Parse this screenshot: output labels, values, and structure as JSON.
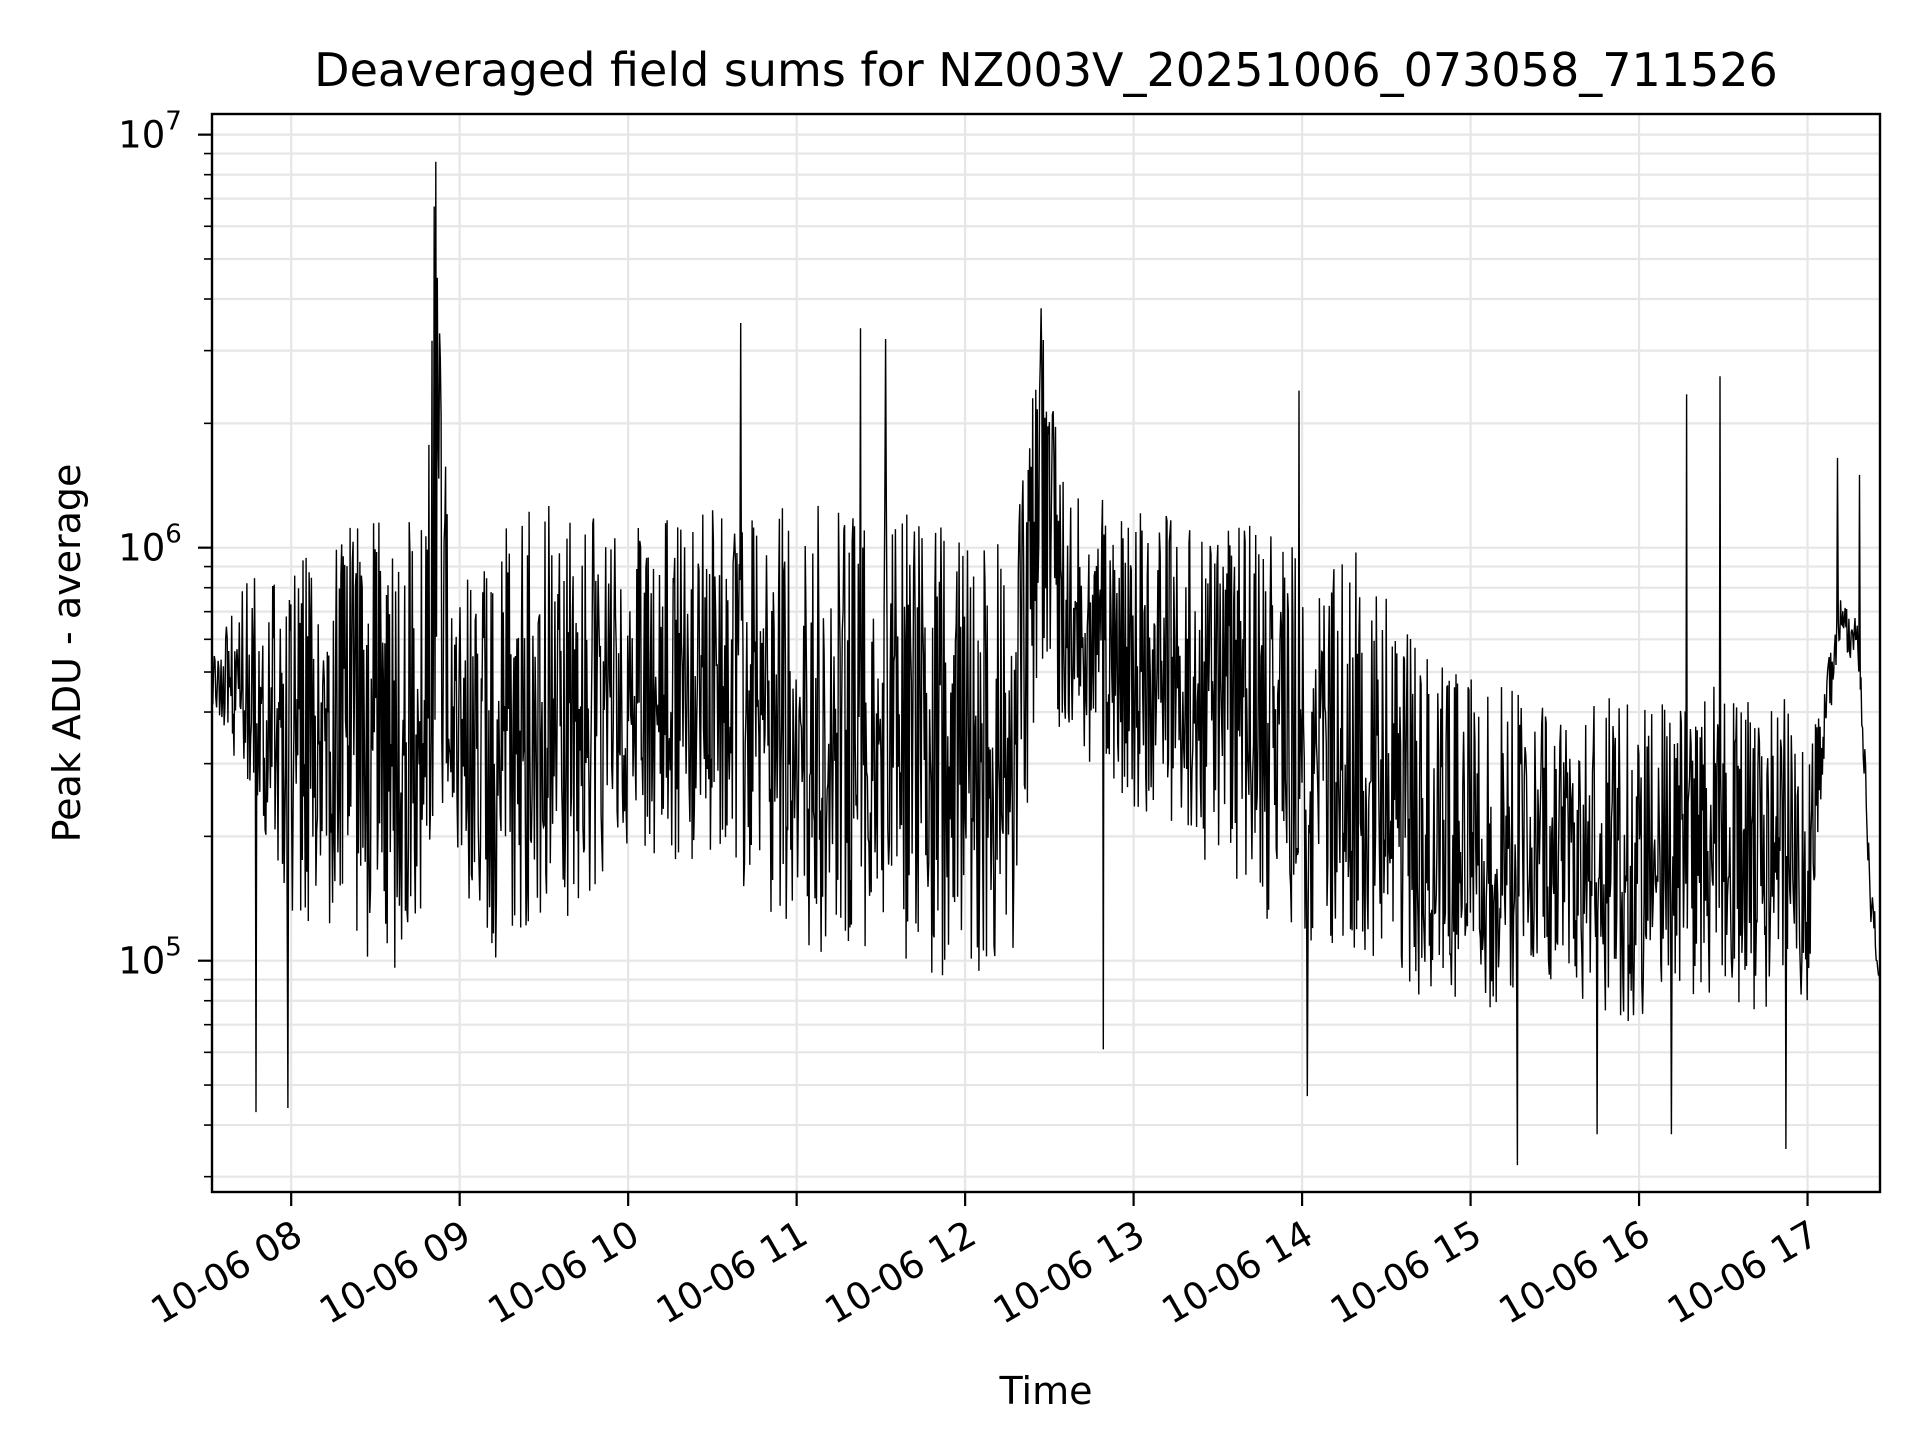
{
  "chart_data": {
    "type": "line",
    "title": "Deaveraged field sums for NZ003V_20251006_073058_711526",
    "xlabel": "Time",
    "ylabel": "Peak ADU - average",
    "yscale": "log",
    "ylim_log10": [
      4.44,
      7.05
    ],
    "y_ticks": [
      {
        "exponent": 5,
        "base": "10",
        "sup": "5"
      },
      {
        "exponent": 6,
        "base": "10",
        "sup": "6"
      },
      {
        "exponent": 7,
        "base": "10",
        "sup": "7"
      }
    ],
    "xlim_hours": [
      7.53,
      17.43
    ],
    "x_ticks": [
      {
        "hour": 8,
        "label": "10-06 08"
      },
      {
        "hour": 9,
        "label": "10-06 09"
      },
      {
        "hour": 10,
        "label": "10-06 10"
      },
      {
        "hour": 11,
        "label": "10-06 11"
      },
      {
        "hour": 12,
        "label": "10-06 12"
      },
      {
        "hour": 13,
        "label": "10-06 13"
      },
      {
        "hour": 14,
        "label": "10-06 14"
      },
      {
        "hour": 15,
        "label": "10-06 15"
      },
      {
        "hour": 16,
        "label": "10-06 16"
      },
      {
        "hour": 17,
        "label": "10-06 17"
      }
    ],
    "grid": true,
    "line_color": "#000000",
    "series": [
      {
        "name": "deaveraged field sums",
        "envelope_hours": [
          7.53,
          7.75,
          8.0,
          8.3,
          8.6,
          8.8,
          8.86,
          8.95,
          9.2,
          9.5,
          9.8,
          10.0,
          10.3,
          10.6,
          10.9,
          11.2,
          11.5,
          11.7,
          11.9,
          12.1,
          12.3,
          12.45,
          12.6,
          12.9,
          13.2,
          13.5,
          13.8,
          14.0,
          14.3,
          14.5,
          14.7,
          14.9,
          15.1,
          15.3,
          15.5,
          15.7,
          15.9,
          16.1,
          16.3,
          16.5,
          16.7,
          16.9,
          17.0,
          17.1,
          17.2,
          17.3,
          17.38,
          17.43
        ],
        "envelope_high_adu": [
          550000,
          850000,
          950000,
          1100000,
          1250000,
          1200000,
          8600000,
          800000,
          1100000,
          1300000,
          1250000,
          1150000,
          1200000,
          1300000,
          1350000,
          1300000,
          1400000,
          1200000,
          1100000,
          1050000,
          1300000,
          3800000,
          1350000,
          1300000,
          1250000,
          1200000,
          1100000,
          1000000,
          1000000,
          850000,
          550000,
          500000,
          480000,
          450000,
          420000,
          430000,
          440000,
          450000,
          460000,
          470000,
          450000,
          430000,
          300000,
          480000,
          780000,
          680000,
          160000,
          95000
        ],
        "envelope_low_adu": [
          400000,
          250000,
          130000,
          110000,
          90000,
          120000,
          300000,
          150000,
          90000,
          110000,
          150000,
          180000,
          150000,
          160000,
          120000,
          100000,
          110000,
          90000,
          85000,
          95000,
          100000,
          500000,
          300000,
          250000,
          200000,
          160000,
          120000,
          110000,
          100000,
          90000,
          80000,
          75000,
          70000,
          80000,
          85000,
          80000,
          70000,
          75000,
          80000,
          85000,
          70000,
          75000,
          80000,
          300000,
          560000,
          520000,
          110000,
          85000
        ],
        "spikes": [
          {
            "hour": 8.86,
            "adu": 8600000
          },
          {
            "hour": 8.85,
            "adu": 6700000
          },
          {
            "hour": 10.67,
            "adu": 3500000
          },
          {
            "hour": 11.38,
            "adu": 3400000
          },
          {
            "hour": 11.53,
            "adu": 3200000
          },
          {
            "hour": 12.45,
            "adu": 3800000
          },
          {
            "hour": 12.4,
            "adu": 2300000
          },
          {
            "hour": 16.28,
            "adu": 2350000
          },
          {
            "hour": 16.48,
            "adu": 2600000
          },
          {
            "hour": 13.98,
            "adu": 2400000
          },
          {
            "hour": 17.18,
            "adu": 1650000
          },
          {
            "hour": 17.31,
            "adu": 1500000
          }
        ],
        "dips": [
          {
            "hour": 7.79,
            "adu": 43000
          },
          {
            "hour": 7.98,
            "adu": 44000
          },
          {
            "hour": 15.28,
            "adu": 32000
          },
          {
            "hour": 16.87,
            "adu": 35000
          },
          {
            "hour": 15.75,
            "adu": 38000
          },
          {
            "hour": 16.19,
            "adu": 38000
          },
          {
            "hour": 12.82,
            "adu": 61000
          },
          {
            "hour": 14.03,
            "adu": 47000
          }
        ],
        "points_count": 2200,
        "seed": 20251006
      }
    ]
  }
}
